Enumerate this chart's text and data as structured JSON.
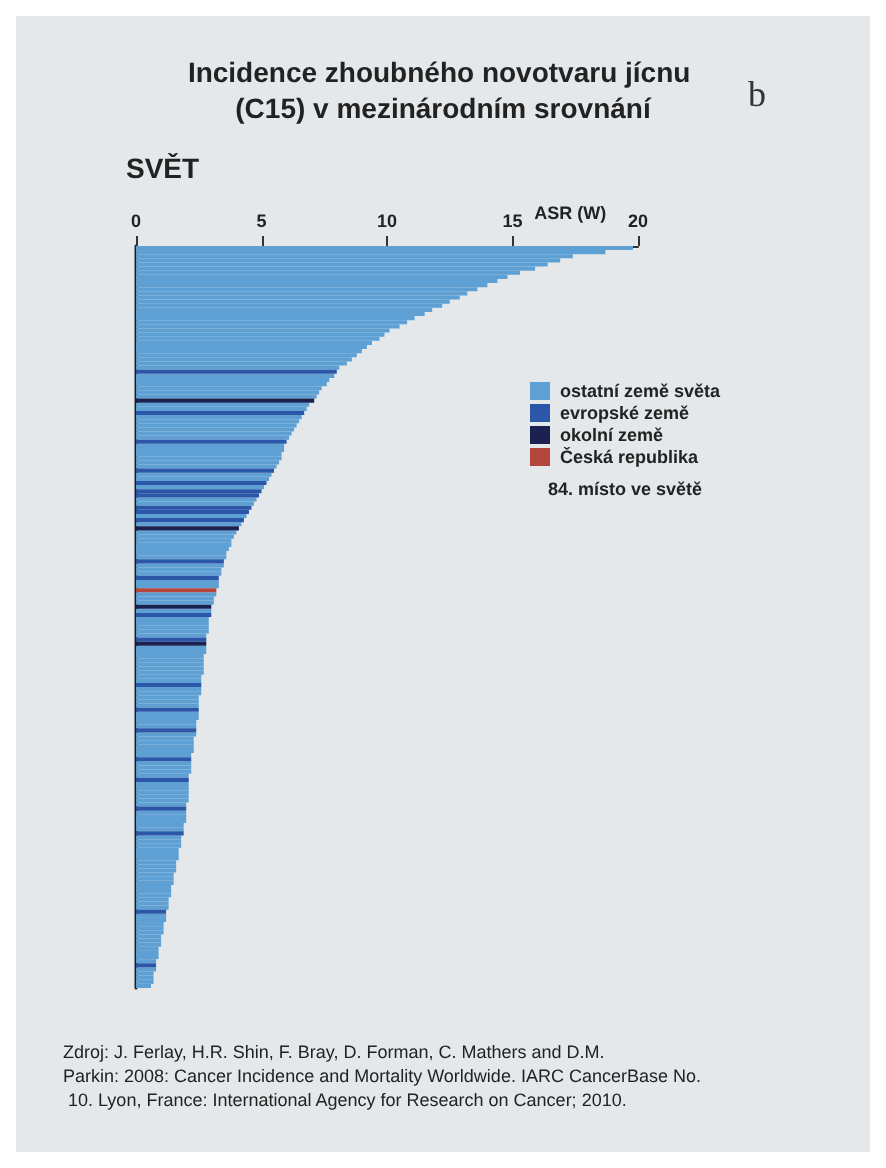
{
  "chart_data": {
    "type": "bar",
    "orientation": "horizontal",
    "stacked": true,
    "title": "Incidence zhoubného novotvaru jícnu (C15) v mezinárodním srovnání",
    "subtitle": "SVĚT",
    "xlabel": "ASR (W)",
    "annotations": [
      "b",
      "84. místo ve světě",
      "Zdroj: J. Ferlay, H.R. Shin, F. Bray, D. Forman, C. Mathers and D.M. Parkin: 2008: Cancer Incidence and Mortality Worldwide. IARC CancerBase No. 10. Lyon, France: International Agency for Research on Cancer; 2010."
    ],
    "categories": [
      null,
      null,
      null,
      null,
      null,
      null,
      null,
      null,
      null,
      null,
      null,
      null,
      null,
      null,
      null,
      null,
      null,
      null,
      null,
      null,
      null,
      null,
      null,
      null,
      null,
      null,
      null,
      null,
      null,
      null,
      null,
      null,
      null,
      null,
      null,
      null,
      null,
      null,
      null,
      null,
      null,
      null,
      null,
      null,
      null,
      null,
      null,
      null,
      null,
      null,
      null,
      null,
      null,
      null,
      null,
      null,
      null,
      null,
      null,
      null,
      null,
      null,
      null,
      null,
      null,
      null,
      null,
      null,
      null,
      null,
      null,
      null,
      null,
      null,
      null,
      null,
      null,
      null,
      null,
      null,
      null,
      null,
      null,
      null,
      null,
      null,
      null,
      null,
      null,
      null,
      null,
      null,
      null,
      null,
      null,
      null,
      null,
      null,
      null,
      null,
      null,
      null,
      null,
      null,
      null,
      null,
      null,
      null,
      null,
      null,
      null,
      null,
      null,
      null,
      null,
      null,
      null,
      null,
      null,
      null,
      null,
      null,
      null,
      null,
      null,
      null,
      null,
      null,
      null,
      null,
      null,
      null,
      null,
      null,
      null,
      null,
      null,
      null,
      null,
      null,
      null,
      null,
      null,
      null,
      null,
      null,
      null,
      null,
      null,
      null,
      null,
      null,
      null,
      null,
      null,
      null,
      null,
      null,
      null,
      null,
      null,
      null,
      null,
      null,
      null,
      null,
      null,
      null,
      null,
      null,
      null,
      null,
      null,
      null,
      null,
      null,
      null,
      null,
      null,
      null
    ],
    "series": [
      {
        "name": "ostatní země světa",
        "color": "#5fa0d4",
        "values": [
          19.8,
          18.7,
          17.4,
          16.9,
          16.4,
          15.9,
          15.3,
          14.8,
          14.4,
          14.0,
          13.6,
          13.2,
          12.9,
          12.5,
          12.2,
          11.8,
          11.5,
          11.1,
          10.8,
          10.5,
          10.1,
          9.9,
          9.7,
          9.4,
          9.2,
          9.0,
          8.8,
          8.6,
          8.4,
          8.1,
          null,
          7.9,
          7.7,
          7.6,
          7.4,
          7.3,
          7.2,
          null,
          6.9,
          6.8,
          null,
          6.6,
          6.5,
          6.4,
          6.3,
          6.2,
          6.1,
          null,
          5.9,
          5.9,
          5.8,
          5.8,
          5.7,
          5.6,
          null,
          5.4,
          5.3,
          null,
          5.1,
          null,
          null,
          4.8,
          4.7,
          null,
          null,
          4.4,
          null,
          4.2,
          null,
          4.0,
          3.9,
          3.8,
          3.8,
          3.7,
          3.6,
          3.6,
          null,
          3.5,
          3.4,
          3.4,
          null,
          3.3,
          3.3,
          null,
          3.2,
          3.1,
          3.1,
          null,
          3.0,
          null,
          2.9,
          2.9,
          2.9,
          2.9,
          2.8,
          null,
          null,
          2.8,
          2.8,
          2.7,
          2.7,
          2.7,
          2.7,
          2.7,
          2.6,
          2.6,
          null,
          2.6,
          2.6,
          2.5,
          2.5,
          2.5,
          null,
          2.5,
          2.5,
          2.4,
          2.4,
          null,
          2.4,
          2.3,
          2.3,
          2.3,
          2.3,
          2.2,
          null,
          2.2,
          2.2,
          2.2,
          2.1,
          null,
          2.1,
          2.1,
          2.1,
          2.1,
          2.1,
          2.0,
          null,
          2.0,
          2.0,
          2.0,
          1.9,
          1.9,
          null,
          1.8,
          1.8,
          1.8,
          1.7,
          1.7,
          1.7,
          1.6,
          1.6,
          1.6,
          1.5,
          1.5,
          1.5,
          1.4,
          1.4,
          1.4,
          1.3,
          1.3,
          1.3,
          null,
          1.2,
          1.2,
          1.1,
          1.1,
          1.1,
          1.0,
          1.0,
          1.0,
          0.9,
          0.9,
          0.9,
          0.8,
          null,
          0.8,
          0.7,
          0.7,
          0.7,
          0.6
        ]
      },
      {
        "name": "evropské země",
        "color": "#2c57a8",
        "values": [
          null,
          null,
          null,
          null,
          null,
          null,
          null,
          null,
          null,
          null,
          null,
          null,
          null,
          null,
          null,
          null,
          null,
          null,
          null,
          null,
          null,
          null,
          null,
          null,
          null,
          null,
          null,
          null,
          null,
          null,
          8.0,
          null,
          null,
          null,
          null,
          null,
          null,
          null,
          null,
          null,
          6.7,
          null,
          null,
          null,
          null,
          null,
          null,
          6.0,
          null,
          null,
          null,
          null,
          null,
          null,
          5.5,
          null,
          null,
          5.2,
          null,
          5.0,
          4.9,
          null,
          null,
          4.6,
          4.5,
          null,
          4.3,
          null,
          null,
          null,
          null,
          null,
          null,
          null,
          null,
          null,
          3.5,
          null,
          null,
          null,
          3.3,
          null,
          null,
          null,
          null,
          null,
          null,
          null,
          null,
          3.0,
          null,
          null,
          null,
          null,
          null,
          2.8,
          null,
          null,
          null,
          null,
          null,
          null,
          null,
          null,
          null,
          null,
          2.6,
          null,
          null,
          null,
          null,
          null,
          2.5,
          null,
          null,
          null,
          null,
          2.4,
          null,
          null,
          null,
          null,
          null,
          null,
          2.2,
          null,
          null,
          null,
          null,
          2.1,
          null,
          null,
          null,
          null,
          null,
          null,
          2.0,
          null,
          null,
          null,
          null,
          null,
          1.9,
          null,
          null,
          null,
          null,
          null,
          null,
          null,
          null,
          null,
          null,
          null,
          null,
          null,
          null,
          null,
          null,
          null,
          null,
          1.2,
          null,
          null,
          null,
          null,
          null,
          null,
          null,
          null,
          null,
          null,
          null,
          null,
          0.8,
          null,
          null,
          null,
          null,
          null
        ]
      },
      {
        "name": "okolní země",
        "color": "#1b2150",
        "values": [
          null,
          null,
          null,
          null,
          null,
          null,
          null,
          null,
          null,
          null,
          null,
          null,
          null,
          null,
          null,
          null,
          null,
          null,
          null,
          null,
          null,
          null,
          null,
          null,
          null,
          null,
          null,
          null,
          null,
          null,
          null,
          null,
          null,
          null,
          null,
          null,
          null,
          7.1,
          null,
          null,
          null,
          null,
          null,
          null,
          null,
          null,
          null,
          null,
          null,
          null,
          null,
          null,
          null,
          null,
          null,
          null,
          null,
          null,
          null,
          null,
          null,
          null,
          null,
          null,
          null,
          null,
          null,
          null,
          4.1,
          null,
          null,
          null,
          null,
          null,
          null,
          null,
          null,
          null,
          null,
          null,
          null,
          null,
          null,
          null,
          null,
          null,
          null,
          3.0,
          null,
          null,
          null,
          null,
          null,
          null,
          null,
          null,
          2.8,
          null,
          null,
          null,
          null,
          null,
          null,
          null,
          null,
          null,
          null,
          null,
          null,
          null,
          null,
          null,
          null,
          null,
          null,
          null,
          null,
          null,
          null,
          null,
          null,
          null,
          null,
          null,
          null,
          null,
          null,
          null,
          null,
          null,
          null,
          null,
          null,
          null,
          null,
          null,
          null,
          null,
          null,
          null,
          null,
          null,
          null,
          null,
          null,
          null,
          null,
          null,
          null,
          null,
          null,
          null,
          null,
          null,
          null,
          null,
          null,
          null,
          null,
          null,
          null,
          null,
          null,
          null,
          null,
          null,
          null,
          null,
          null,
          null,
          null,
          null,
          null,
          null,
          null,
          null,
          null,
          null,
          null,
          null
        ]
      },
      {
        "name": "Česká republika",
        "color": "#b5463c",
        "values": [
          null,
          null,
          null,
          null,
          null,
          null,
          null,
          null,
          null,
          null,
          null,
          null,
          null,
          null,
          null,
          null,
          null,
          null,
          null,
          null,
          null,
          null,
          null,
          null,
          null,
          null,
          null,
          null,
          null,
          null,
          null,
          null,
          null,
          null,
          null,
          null,
          null,
          null,
          null,
          null,
          null,
          null,
          null,
          null,
          null,
          null,
          null,
          null,
          null,
          null,
          null,
          null,
          null,
          null,
          null,
          null,
          null,
          null,
          null,
          null,
          null,
          null,
          null,
          null,
          null,
          null,
          null,
          null,
          null,
          null,
          null,
          null,
          null,
          null,
          null,
          null,
          null,
          null,
          null,
          null,
          null,
          null,
          null,
          3.2,
          null,
          null,
          null,
          null,
          null,
          null,
          null,
          null,
          null,
          null,
          null,
          null,
          null,
          null,
          null,
          null,
          null,
          null,
          null,
          null,
          null,
          null,
          null,
          null,
          null,
          null,
          null,
          null,
          null,
          null,
          null,
          null,
          null,
          null,
          null,
          null,
          null,
          null,
          null,
          null,
          null,
          null,
          null,
          null,
          null,
          null,
          null,
          null,
          null,
          null,
          null,
          null,
          null,
          null,
          null,
          null,
          null,
          null,
          null,
          null,
          null,
          null,
          null,
          null,
          null,
          null,
          null,
          null,
          null,
          null,
          null,
          null,
          null,
          null,
          null,
          null,
          null,
          null,
          null,
          null,
          null,
          null,
          null,
          null,
          null,
          null,
          null,
          null,
          null,
          null,
          null,
          null,
          null,
          null,
          null,
          null
        ]
      }
    ],
    "xlim": [
      0,
      20
    ],
    "xticks": [
      0,
      5,
      10,
      15,
      20
    ],
    "tick_labels": "x",
    "legend": "right",
    "grid": false
  }
}
